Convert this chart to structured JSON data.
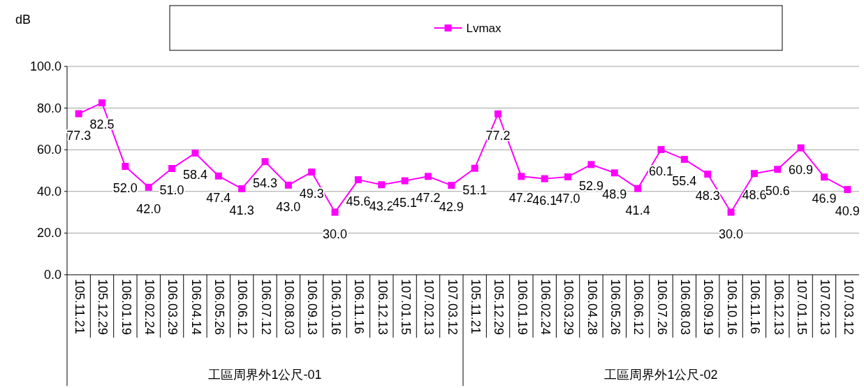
{
  "chart_data": {
    "type": "line",
    "ylabel": "dB",
    "categories": [
      "105.11.21",
      "105.12.29",
      "106.01.19",
      "106.02.24",
      "106.03.29",
      "106.04.14",
      "106.05.26",
      "106.06.12",
      "106.07.12",
      "106.08.03",
      "106.09.13",
      "106.10.16",
      "106.11.16",
      "106.12.13",
      "107.01.15",
      "107.02.13",
      "107.03.12",
      "105.11.21",
      "105.12.29",
      "106.01.19",
      "106.02.24",
      "106.03.29",
      "106.04.28",
      "106.05.26",
      "106.06.12",
      "106.07.26",
      "106.08.03",
      "106.09.19",
      "106.10.16",
      "106.11.16",
      "106.12.13",
      "107.01.15",
      "107.02.13",
      "107.03.12"
    ],
    "series": [
      {
        "name": "Lvmax",
        "color": "#ff00ff",
        "values": [
          77.3,
          82.5,
          52.0,
          42.0,
          51.0,
          58.4,
          47.4,
          41.3,
          54.3,
          43.0,
          49.3,
          30.0,
          45.6,
          43.2,
          45.1,
          47.2,
          42.9,
          51.1,
          77.2,
          47.2,
          46.1,
          47.0,
          52.9,
          48.9,
          41.4,
          60.1,
          55.4,
          48.3,
          30.0,
          48.6,
          50.6,
          60.9,
          46.9,
          40.9
        ],
        "value_labels": [
          "77.3",
          "82.5",
          "52.0",
          "42.0",
          "51.0",
          "58.4",
          "47.4",
          "41.3",
          "54.3",
          "43.0",
          "49.3",
          "30.0",
          "45.6",
          "43.2",
          "45.1",
          "47.2",
          "42.9",
          "51.1",
          "77.2",
          "47.2",
          "46.1",
          "47.0",
          "52.9",
          "48.9",
          "41.4",
          "60.1",
          "55.4",
          "48.3",
          "30.0",
          "48.6",
          "50.6",
          "60.9",
          "46.9",
          "40.9"
        ]
      }
    ],
    "ylim": [
      0,
      100
    ],
    "yticks": [
      {
        "value": 0,
        "label": "0.0"
      },
      {
        "value": 20,
        "label": "20.0"
      },
      {
        "value": 40,
        "label": "40.0"
      },
      {
        "value": 60,
        "label": "60.0"
      },
      {
        "value": 80,
        "label": "80.0"
      },
      {
        "value": 100,
        "label": "100.0"
      }
    ],
    "annotations": [
      "工區周界外1公尺-01",
      "工區周界外1公尺-02"
    ],
    "grid": "y",
    "legend": "top",
    "marker": "square",
    "line_style": "solid"
  }
}
